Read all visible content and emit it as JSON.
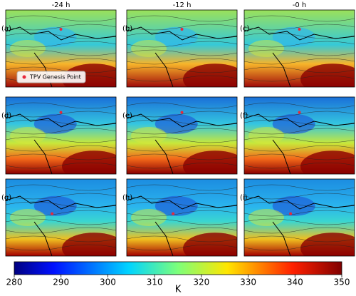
{
  "columns": [
    "-24 h",
    "-12 h",
    "-0 h"
  ],
  "panels": [
    "(a)",
    "(b)",
    "(c)",
    "(d)",
    "(e)",
    "(f)",
    "(g)",
    "(h)",
    "(i)"
  ],
  "legend": "TPV Genesis Point",
  "colorbar": {
    "ticks": [
      280,
      290,
      300,
      310,
      320,
      330,
      340,
      350
    ],
    "label": "K"
  }
}
